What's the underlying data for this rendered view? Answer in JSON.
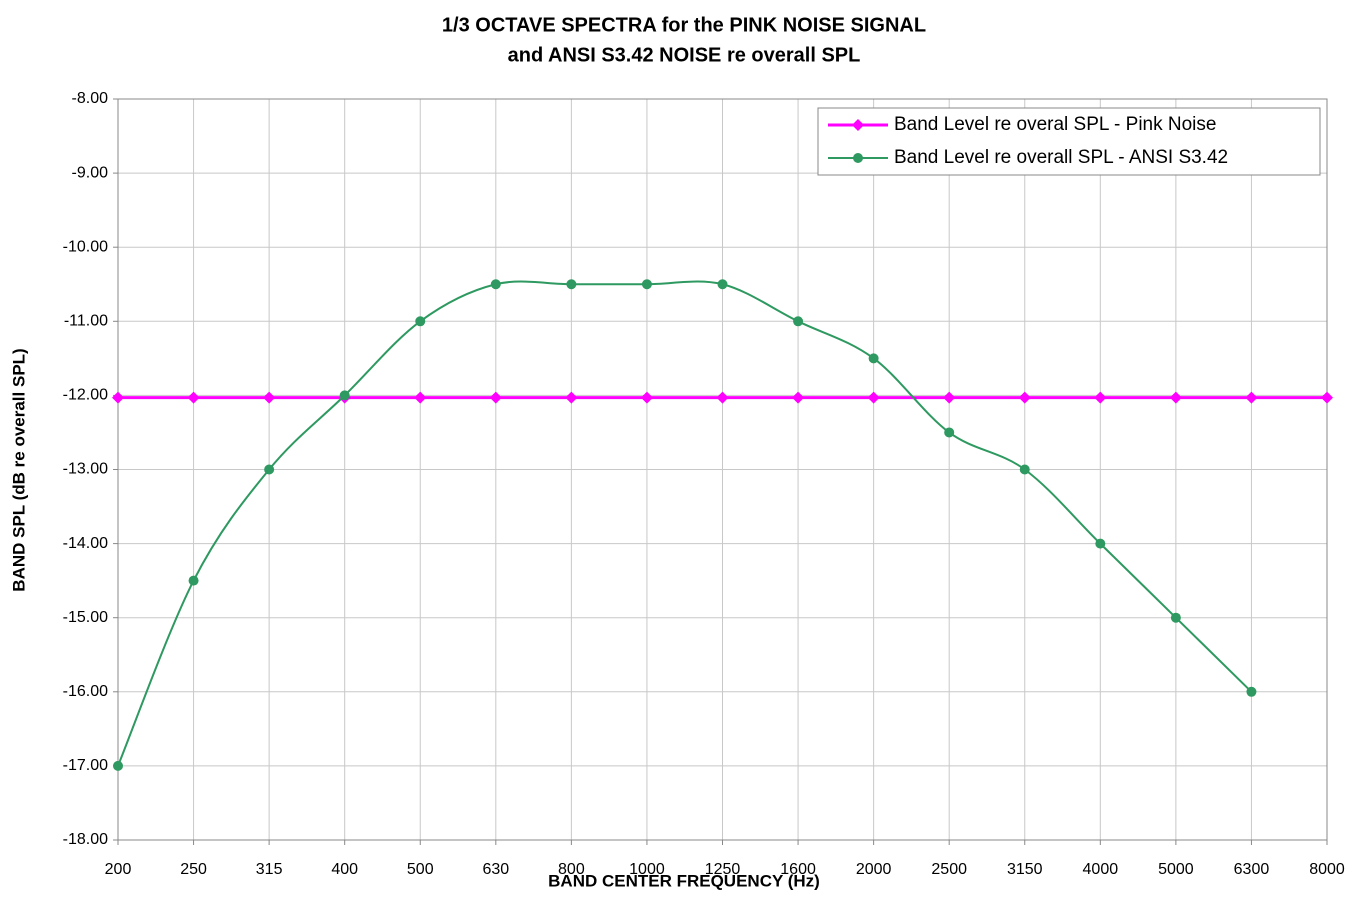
{
  "chart_data": {
    "type": "line",
    "title": [
      "1/3 OCTAVE SPECTRA for the PINK NOISE SIGNAL",
      "and ANSI S3.42 NOISE re overall SPL"
    ],
    "x_label": "BAND CENTER FREQUENCY (Hz)",
    "y_label": "BAND SPL (dB re overall SPL)",
    "categories": [
      "200",
      "250",
      "315",
      "400",
      "500",
      "630",
      "800",
      "1000",
      "1250",
      "1600",
      "2000",
      "2500",
      "3150",
      "4000",
      "5000",
      "6300",
      "8000"
    ],
    "series": [
      {
        "name": "Band Level re overal SPL - Pink Noise",
        "color": "#ff00ff",
        "marker": "diamond",
        "values": [
          -12.03,
          -12.03,
          -12.03,
          -12.03,
          -12.03,
          -12.03,
          -12.03,
          -12.03,
          -12.03,
          -12.03,
          -12.03,
          -12.03,
          -12.03,
          -12.03,
          -12.03,
          -12.03,
          -12.03
        ]
      },
      {
        "name": "Band Level re overall SPL - ANSI S3.42",
        "color": "#2e9960",
        "marker": "circle",
        "smooth": true,
        "values": [
          -17,
          -14.5,
          -13,
          -12,
          -11,
          -10.5,
          -10.5,
          -10.5,
          -10.5,
          -11,
          -11.5,
          -12.5,
          -13,
          -14,
          -15,
          -16,
          null
        ]
      }
    ],
    "ylim": [
      -18,
      -8
    ],
    "yticks": [
      {
        "value": -18,
        "label": "-18.00"
      },
      {
        "value": -17,
        "label": "-17.00"
      },
      {
        "value": -16,
        "label": "-16.00"
      },
      {
        "value": -15,
        "label": "-15.00"
      },
      {
        "value": -14,
        "label": "-14.00"
      },
      {
        "value": -13,
        "label": "-13.00"
      },
      {
        "value": -12,
        "label": "-12.00"
      },
      {
        "value": -11,
        "label": "-11.00"
      },
      {
        "value": -10,
        "label": "-10.00"
      },
      {
        "value": -9,
        "label": "-9.00"
      },
      {
        "value": -8,
        "label": "-8.00"
      }
    ],
    "grid": true,
    "legend": "top-right"
  }
}
